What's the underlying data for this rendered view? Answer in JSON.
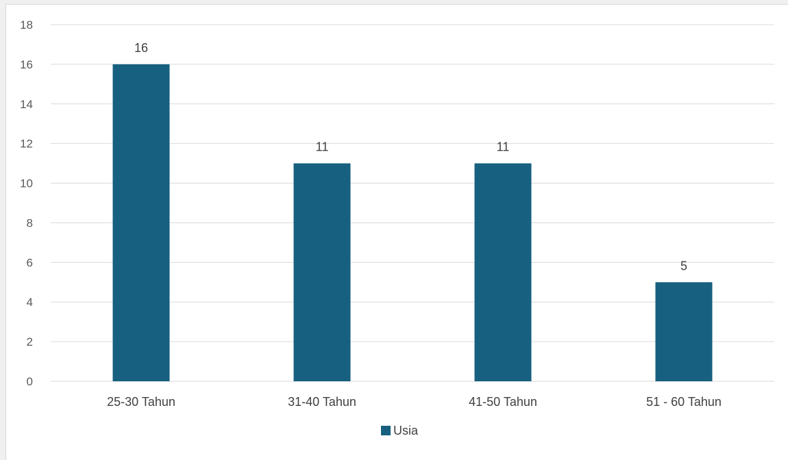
{
  "chart_data": {
    "type": "bar",
    "categories": [
      "25-30 Tahun",
      "31-40 Tahun",
      "41-50 Tahun",
      "51 - 60 Tahun"
    ],
    "series": [
      {
        "name": "Usia",
        "values": [
          16,
          11,
          11,
          5
        ],
        "color": "#17607f"
      }
    ],
    "title": "",
    "xlabel": "",
    "ylabel": "",
    "ylim": [
      0,
      18
    ],
    "yticks": [
      0,
      2,
      4,
      6,
      8,
      10,
      12,
      14,
      16,
      18
    ],
    "grid": true,
    "data_labels": true,
    "legend_position": "bottom"
  },
  "colors": {
    "bar": "#17607f",
    "grid": "#d9d9d9",
    "background": "#ffffff"
  }
}
